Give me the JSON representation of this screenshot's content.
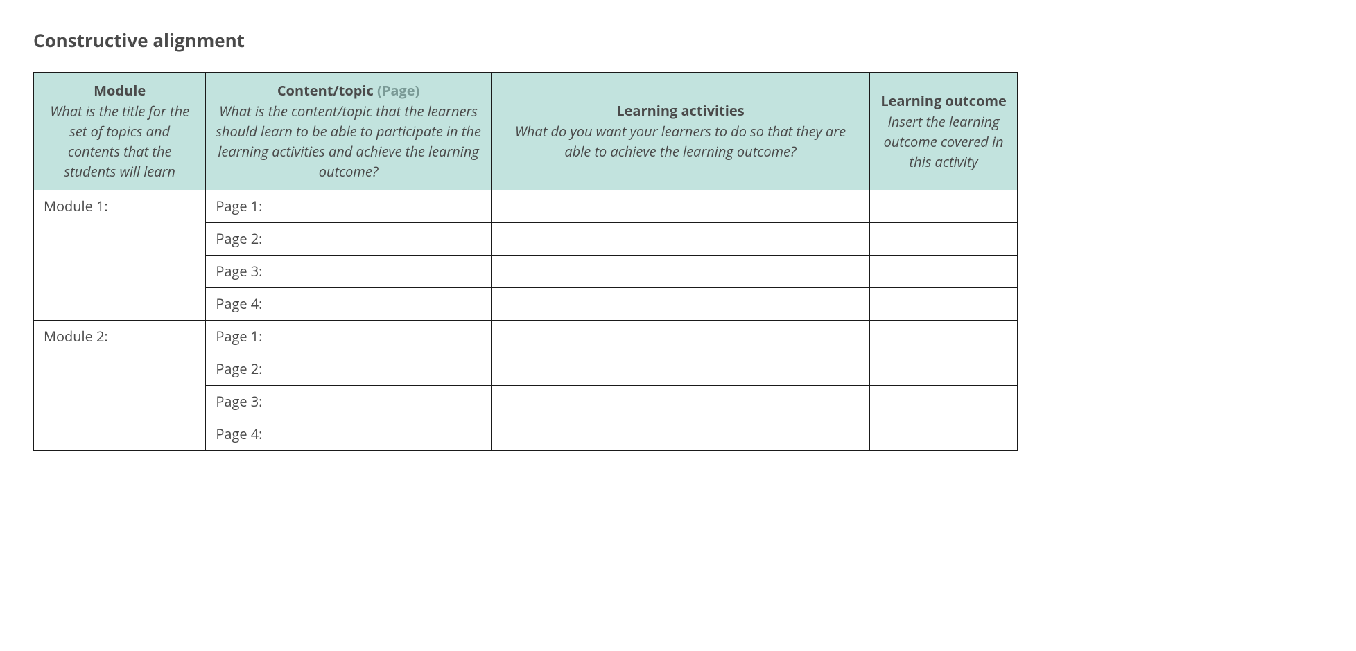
{
  "title": "Constructive alignment",
  "table": {
    "header_bg": "#c2e3de",
    "border_color": "#1a1a1a",
    "text_color": "#4a4a4a",
    "secondary_color": "#7a9a96",
    "font_size_header": 20,
    "font_size_body": 20,
    "columns": [
      {
        "key": "module",
        "title": "Module",
        "title_secondary": "",
        "desc": "What is the title for the set of topics and contents that the students will learn",
        "width_pct": 17.5
      },
      {
        "key": "content",
        "title": "Content/topic",
        "title_secondary": " (Page)",
        "desc": "What is the content/topic that the learners should learn to be able to participate in the learning activities and achieve the learning outcome?",
        "width_pct": 29
      },
      {
        "key": "activities",
        "title": "Learning activities",
        "title_secondary": "",
        "desc": "What do you want your learners to do so that they are able to achieve the learning outcome?",
        "width_pct": 38.5
      },
      {
        "key": "outcome",
        "title": "Learning outcome",
        "title_secondary": "",
        "desc": "Insert the learning outcome covered in this activity",
        "width_pct": 15
      }
    ],
    "modules": [
      {
        "label": "Module 1:",
        "pages": [
          {
            "content": "Page 1:",
            "activities": "",
            "outcome": ""
          },
          {
            "content": "Page 2:",
            "activities": "",
            "outcome": ""
          },
          {
            "content": "Page 3:",
            "activities": "",
            "outcome": ""
          },
          {
            "content": "Page 4:",
            "activities": "",
            "outcome": ""
          }
        ]
      },
      {
        "label": "Module 2:",
        "pages": [
          {
            "content": "Page 1:",
            "activities": "",
            "outcome": ""
          },
          {
            "content": "Page 2:",
            "activities": "",
            "outcome": ""
          },
          {
            "content": "Page 3:",
            "activities": "",
            "outcome": ""
          },
          {
            "content": "Page 4:",
            "activities": "",
            "outcome": ""
          }
        ]
      }
    ]
  }
}
